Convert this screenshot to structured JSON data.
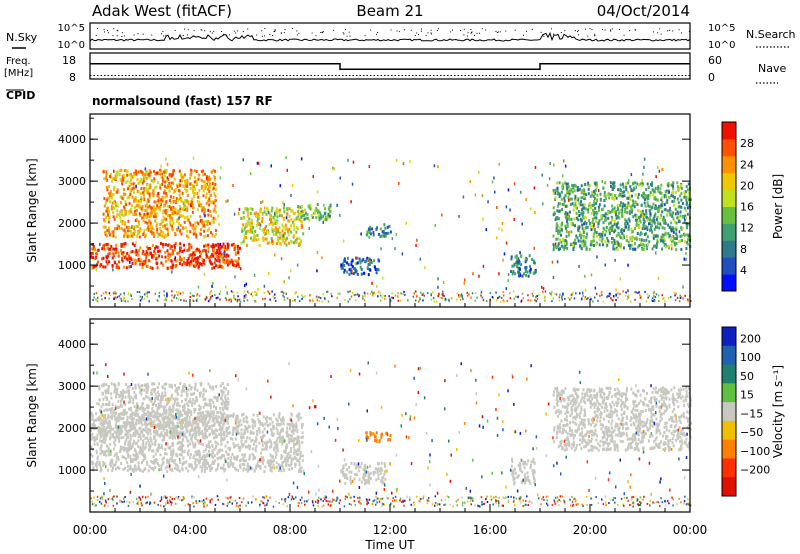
{
  "header": {
    "station": "Adak West (fitACF)",
    "beam": "Beam 21",
    "date": "04/Oct/2014"
  },
  "noise_panel": {
    "left_label": "N.Sky",
    "right_label": "N.Search",
    "left_ticks": [
      "10^5",
      "10^0"
    ],
    "right_ticks": [
      "10^5",
      "10^0"
    ]
  },
  "freq_panel": {
    "left_label_1": "Freq.",
    "left_label_2": "[MHz]",
    "right_label": "Nave",
    "left_ticks": [
      "18",
      "8"
    ],
    "right_ticks": [
      "60",
      "0"
    ],
    "freq_steps": [
      {
        "start_h": 0,
        "end_h": 10,
        "level": 13
      },
      {
        "start_h": 10,
        "end_h": 18,
        "level": 10.5
      },
      {
        "start_h": 18,
        "end_h": 24,
        "level": 13
      }
    ],
    "nave_level": 8
  },
  "cpid": {
    "label": "CPID",
    "program": "normalsound (fast) 157 RF"
  },
  "x_axis": {
    "label": "Time UT",
    "ticks": [
      "00:00",
      "04:00",
      "08:00",
      "12:00",
      "16:00",
      "20:00",
      "00:00"
    ],
    "range_h": [
      0,
      24
    ]
  },
  "chart_data": [
    {
      "type": "heatmap",
      "panel": "power",
      "ylabel": "Slant Range [km]",
      "yticks": [
        "1000",
        "2000",
        "3000",
        "4000"
      ],
      "ylim": [
        0,
        4600
      ],
      "colorbar_label": "Power [dB]",
      "colorbar_ticks": [
        "4",
        "8",
        "12",
        "16",
        "20",
        "24",
        "28"
      ],
      "colorbar_range": [
        0,
        32
      ],
      "colors": [
        "#0010ff",
        "#2050c0",
        "#2e7a8a",
        "#3fa070",
        "#68c040",
        "#c0e020",
        "#f0c800",
        "#ff9000",
        "#ff5000",
        "#f01000"
      ],
      "regions": [
        {
          "t0": 0.0,
          "t1": 6.0,
          "r0": 950,
          "r1": 1550,
          "v": 29
        },
        {
          "t0": 6.0,
          "t1": 8.5,
          "r0": 1500,
          "r1": 2400,
          "v": 19
        },
        {
          "t0": 0.5,
          "t1": 5.0,
          "r0": 1700,
          "r1": 3300,
          "v": 23
        },
        {
          "t0": 8.2,
          "t1": 9.6,
          "r0": 2100,
          "r1": 2500,
          "v": 13
        },
        {
          "t0": 10.0,
          "t1": 11.6,
          "r0": 800,
          "r1": 1200,
          "v": 6
        },
        {
          "t0": 11.0,
          "t1": 12.0,
          "r0": 1700,
          "r1": 2000,
          "v": 10
        },
        {
          "t0": 16.8,
          "t1": 17.8,
          "r0": 750,
          "r1": 1300,
          "v": 8
        },
        {
          "t0": 18.5,
          "t1": 24.0,
          "r0": 1400,
          "r1": 3000,
          "v": 12
        }
      ]
    },
    {
      "type": "heatmap",
      "panel": "velocity",
      "ylabel": "Slant Range [km]",
      "yticks": [
        "1000",
        "2000",
        "3000",
        "4000"
      ],
      "ylim": [
        0,
        4600
      ],
      "colorbar_label": "Velocity [m s⁻¹]",
      "colorbar_ticks": [
        "200",
        "100",
        "50",
        "15",
        "−15",
        "−50",
        "−100",
        "−200"
      ],
      "colors": [
        "#1020c0",
        "#2060b0",
        "#208070",
        "#60c040",
        "#c8c8c0",
        "#f0c000",
        "#ff8000",
        "#ff3000",
        "#e01000"
      ],
      "regions": [
        {
          "t0": 0.0,
          "t1": 8.5,
          "r0": 1000,
          "r1": 2400,
          "v": 0
        },
        {
          "t0": 0.3,
          "t1": 5.5,
          "r0": 1800,
          "r1": 3100,
          "v": 0
        },
        {
          "t0": 10.0,
          "t1": 11.8,
          "r0": 700,
          "r1": 1200,
          "v": 0
        },
        {
          "t0": 11.0,
          "t1": 12.0,
          "r0": 1700,
          "r1": 1950,
          "v": -60
        },
        {
          "t0": 16.8,
          "t1": 17.8,
          "r0": 700,
          "r1": 1300,
          "v": 0
        },
        {
          "t0": 18.5,
          "t1": 24.0,
          "r0": 1500,
          "r1": 3000,
          "v": 0
        }
      ]
    }
  ]
}
